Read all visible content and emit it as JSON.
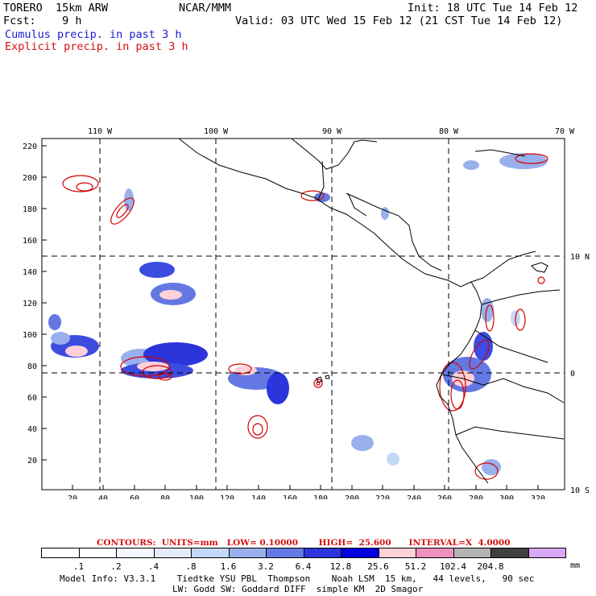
{
  "header": {
    "model": "TORERO  15km ARW",
    "org": "NCAR/MMM",
    "init": "Init: 18 UTC Tue 14 Feb 12",
    "fcst": "Fcst:    9 h",
    "valid": "Valid: 03 UTC Wed 15 Feb 12 (21 CST Tue 14 Feb 12)",
    "cumulus": "Cumulus precip. in past 3 h",
    "explicit": "Explicit precip. in past 3 h"
  },
  "map": {
    "lon_labels": [
      "110 W",
      "100 W",
      "90 W",
      "80 W",
      "70 W"
    ],
    "lat_labels": [
      "10 N",
      "0",
      "10 S"
    ],
    "y_ticks": [
      "220",
      "200",
      "180",
      "160",
      "140",
      "120",
      "100",
      "80",
      "60",
      "40",
      "20"
    ],
    "x_ticks": [
      "20",
      "40",
      "60",
      "80",
      "100",
      "120",
      "140",
      "160",
      "180",
      "200",
      "220",
      "240",
      "260",
      "280",
      "300",
      "320"
    ],
    "colors": {
      "land": "#000000",
      "grid": "#000000",
      "explicit_contour": "#d40000"
    }
  },
  "legend": {
    "contours_text": "CONTOURS:  UNITS=mm   LOW= 0.10000       HIGH=  25.600      INTERVAL=X  4.0000",
    "thresholds": [
      ".1",
      ".2",
      ".4",
      ".8",
      "1.6",
      "3.2",
      "6.4",
      "12.8",
      "25.6",
      "51.2",
      "102.4",
      "204.8"
    ],
    "units": "mm",
    "colors": [
      "#ffffff",
      "#ffffff",
      "#f4f8ff",
      "#e4ecfc",
      "#c4d8f8",
      "#9ab0ec",
      "#6478e4",
      "#2c34dc",
      "#0000e0",
      "#ffd0d8",
      "#f090c0",
      "#b4b4b4",
      "#404040",
      "#d8a8f4"
    ]
  },
  "footer": {
    "line1": "Model Info: V3.3.1    Tiedtke YSU PBL  Thompson    Noah LSM  15 km,   44 levels,   90 sec",
    "line2": "LW: Godd SW: Goddard DIFF  simple KM  2D Smagor"
  }
}
